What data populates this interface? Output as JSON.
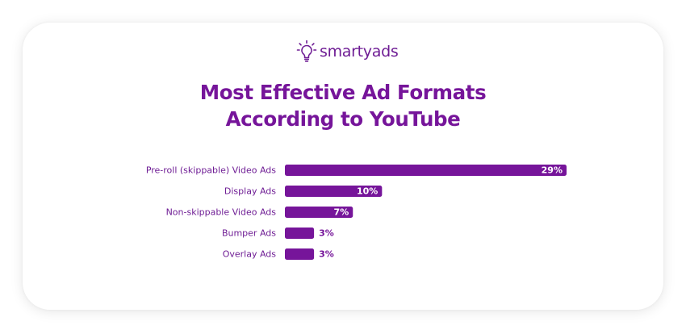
{
  "brand": {
    "logo_text": "smartyads",
    "logo_icon": "lightbulb-icon",
    "brand_color": "#6e1c94"
  },
  "colors": {
    "bar": "#76159a",
    "label": "#6e1c94",
    "value_label_inside": "#ffffff",
    "value_label_outside": "#76159a"
  },
  "chart_data": {
    "type": "bar",
    "orientation": "horizontal",
    "title_lines": [
      "Most Effective Ad Formats",
      "According to YouTube"
    ],
    "categories": [
      "Pre-roll (skippable) Video Ads",
      "Display Ads",
      "Non-skippable Video Ads",
      "Bumper Ads",
      "Overlay Ads"
    ],
    "values": [
      29,
      10,
      7,
      3,
      3
    ],
    "value_labels": [
      "29%",
      "10%",
      "7%",
      "3%",
      "3%"
    ],
    "unit": "%",
    "xlim": [
      0,
      29
    ],
    "grid": false,
    "legend": "none",
    "axes_visible": false
  }
}
